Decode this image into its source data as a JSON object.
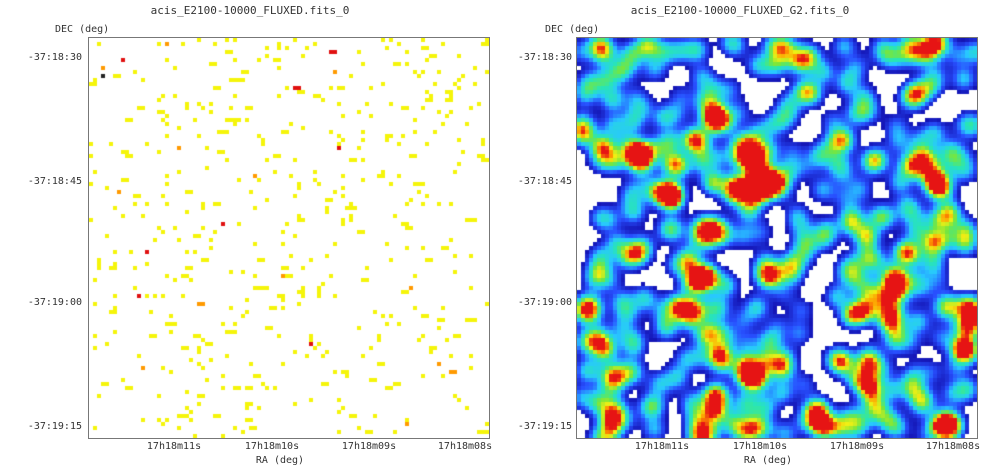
{
  "panels": [
    {
      "title": "acis_E2100-10000_FLUXED.fits_0",
      "ylabel": "DEC (deg)",
      "xlabel": "RA (deg)",
      "yticks": [
        "-37:18:30",
        "-37:18:45",
        "-37:19:00",
        "-37:19:15"
      ],
      "xticks": [
        "17h18m11s",
        "17h18m10s",
        "17h18m09s",
        "17h18m08s"
      ],
      "colormap": "sparse-yellow-red",
      "background_color": "#ffffff"
    },
    {
      "title": "acis_E2100-10000_FLUXED_G2.fits_0",
      "ylabel": "DEC (deg)",
      "xlabel": "RA (deg)",
      "yticks": [
        "-37:18:30",
        "-37:18:45",
        "-37:19:00",
        "-37:19:15"
      ],
      "xticks": [
        "17h18m11s",
        "17h18m10s",
        "17h18m09s",
        "17h18m08s"
      ],
      "colormap": "jet-smoothed",
      "background_color": "#ffffff"
    }
  ]
}
